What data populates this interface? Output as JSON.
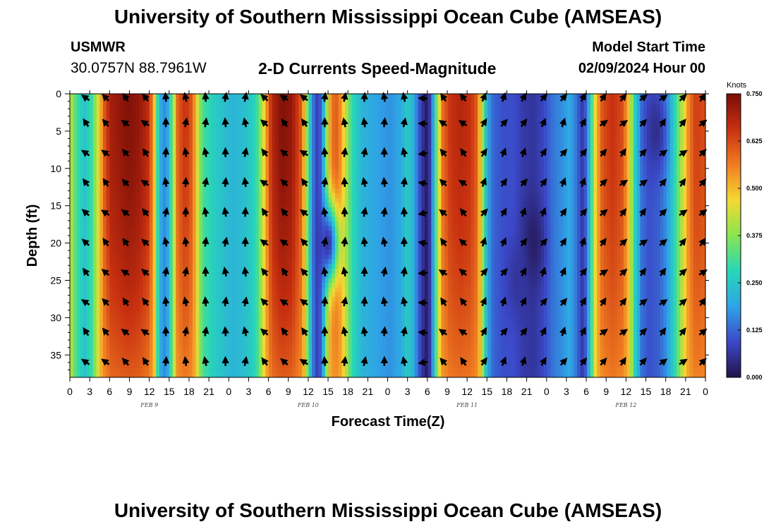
{
  "header": {
    "title": "University of Southern Mississippi Ocean Cube (AMSEAS)",
    "station": "USMWR",
    "coords": "30.0757N  88.7961W",
    "plot_title": "2-D Currents Speed-Magnitude",
    "model_start_label": "Model Start Time",
    "model_start_value": "02/09/2024 Hour 00"
  },
  "footer": {
    "title": "University of Southern Mississippi Ocean Cube (AMSEAS)"
  },
  "chart_data": {
    "type": "heatmap",
    "title": "2-D Currents Speed-Magnitude",
    "xlabel": "Forecast Time(Z)",
    "ylabel": "Depth (ft)",
    "x_range_hours": [
      0,
      96
    ],
    "y_range_ft": [
      0,
      38
    ],
    "y_inverted": true,
    "x_ticks": [
      "0",
      "3",
      "6",
      "9",
      "12",
      "15",
      "18",
      "21",
      "0",
      "3",
      "6",
      "9",
      "12",
      "15",
      "18",
      "21",
      "0",
      "3",
      "6",
      "9",
      "12",
      "15",
      "18",
      "21",
      "0",
      "3",
      "6",
      "9",
      "12",
      "15",
      "18",
      "21",
      "0"
    ],
    "y_ticks": [
      0,
      5,
      10,
      15,
      20,
      25,
      30,
      35
    ],
    "date_labels": [
      {
        "label": "FEB 9",
        "hour": 12
      },
      {
        "label": "FEB 10",
        "hour": 36
      },
      {
        "label": "FEB 11",
        "hour": 60
      },
      {
        "label": "FEB 12",
        "hour": 84
      }
    ],
    "colorbar": {
      "unit": "Knots",
      "min": 0.0,
      "max": 0.75,
      "ticks": [
        "0.000",
        "0.125",
        "0.250",
        "0.375",
        "0.500",
        "0.625",
        "0.750"
      ],
      "colors": [
        "#24124a",
        "#3b48c8",
        "#2fa4e6",
        "#27d6b8",
        "#88e650",
        "#f5d833",
        "#f07d22",
        "#c83010",
        "#7a0d08"
      ]
    },
    "speed_by_hour": [
      {
        "hour": 0,
        "speed": 0.44
      },
      {
        "hour": 0.5,
        "speed": 0.36
      },
      {
        "hour": 1.2,
        "speed": 0.3
      },
      {
        "hour": 2.2,
        "speed": 0.24
      },
      {
        "hour": 3.3,
        "speed": 0.3
      },
      {
        "hour": 4.3,
        "speed": 0.45
      },
      {
        "hour": 5.3,
        "speed": 0.62
      },
      {
        "hour": 6.2,
        "speed": 0.7
      },
      {
        "hour": 7.5,
        "speed": 0.72
      },
      {
        "hour": 9,
        "speed": 0.74
      },
      {
        "hour": 10.5,
        "speed": 0.72
      },
      {
        "hour": 12,
        "speed": 0.66
      },
      {
        "hour": 12.8,
        "speed": 0.48
      },
      {
        "hour": 13.3,
        "speed": 0.28
      },
      {
        "hour": 14,
        "speed": 0.15
      },
      {
        "hour": 14.8,
        "speed": 0.2
      },
      {
        "hour": 15.5,
        "speed": 0.35
      },
      {
        "hour": 16.3,
        "speed": 0.6
      },
      {
        "hour": 17.5,
        "speed": 0.66
      },
      {
        "hour": 18.5,
        "speed": 0.6
      },
      {
        "hour": 19.3,
        "speed": 0.44
      },
      {
        "hour": 20,
        "speed": 0.32
      },
      {
        "hour": 21.5,
        "speed": 0.27
      },
      {
        "hour": 23,
        "speed": 0.24
      },
      {
        "hour": 24.5,
        "speed": 0.22
      },
      {
        "hour": 26,
        "speed": 0.23
      },
      {
        "hour": 27.5,
        "speed": 0.26
      },
      {
        "hour": 28.5,
        "speed": 0.32
      },
      {
        "hour": 29.5,
        "speed": 0.5
      },
      {
        "hour": 30.5,
        "speed": 0.68
      },
      {
        "hour": 32,
        "speed": 0.74
      },
      {
        "hour": 33.5,
        "speed": 0.72
      },
      {
        "hour": 35,
        "speed": 0.6
      },
      {
        "hour": 35.8,
        "speed": 0.38
      },
      {
        "hour": 36.5,
        "speed": 0.18
      },
      {
        "hour": 37.2,
        "speed": 0.08
      },
      {
        "hour": 38,
        "speed": 0.12
      },
      {
        "hour": 38.8,
        "speed": 0.38
      },
      {
        "hour": 39.5,
        "speed": 0.58
      },
      {
        "hour": 40.5,
        "speed": 0.6
      },
      {
        "hour": 41.5,
        "speed": 0.45
      },
      {
        "hour": 42.5,
        "speed": 0.3
      },
      {
        "hour": 44,
        "speed": 0.22
      },
      {
        "hour": 45.5,
        "speed": 0.2
      },
      {
        "hour": 47,
        "speed": 0.18
      },
      {
        "hour": 48.5,
        "speed": 0.17
      },
      {
        "hour": 50,
        "speed": 0.2
      },
      {
        "hour": 51,
        "speed": 0.26
      },
      {
        "hour": 52,
        "speed": 0.2
      },
      {
        "hour": 53,
        "speed": 0.08
      },
      {
        "hour": 53.8,
        "speed": 0.02
      },
      {
        "hour": 54.5,
        "speed": 0.08
      },
      {
        "hour": 55.3,
        "speed": 0.32
      },
      {
        "hour": 56.3,
        "speed": 0.58
      },
      {
        "hour": 57.5,
        "speed": 0.66
      },
      {
        "hour": 59,
        "speed": 0.68
      },
      {
        "hour": 60.5,
        "speed": 0.66
      },
      {
        "hour": 61.5,
        "speed": 0.6
      },
      {
        "hour": 62.3,
        "speed": 0.4
      },
      {
        "hour": 63,
        "speed": 0.2
      },
      {
        "hour": 64,
        "speed": 0.12
      },
      {
        "hour": 65.5,
        "speed": 0.1
      },
      {
        "hour": 67,
        "speed": 0.1
      },
      {
        "hour": 68.5,
        "speed": 0.07
      },
      {
        "hour": 70,
        "speed": 0.06
      },
      {
        "hour": 71.5,
        "speed": 0.09
      },
      {
        "hour": 73,
        "speed": 0.14
      },
      {
        "hour": 74.5,
        "speed": 0.17
      },
      {
        "hour": 75.5,
        "speed": 0.2
      },
      {
        "hour": 76.5,
        "speed": 0.14
      },
      {
        "hour": 77.3,
        "speed": 0.07
      },
      {
        "hour": 78,
        "speed": 0.12
      },
      {
        "hour": 78.8,
        "speed": 0.3
      },
      {
        "hour": 79.5,
        "speed": 0.5
      },
      {
        "hour": 80.5,
        "speed": 0.62
      },
      {
        "hour": 82,
        "speed": 0.66
      },
      {
        "hour": 83.5,
        "speed": 0.62
      },
      {
        "hour": 84.5,
        "speed": 0.48
      },
      {
        "hour": 85.3,
        "speed": 0.28
      },
      {
        "hour": 86.3,
        "speed": 0.14
      },
      {
        "hour": 87.5,
        "speed": 0.1
      },
      {
        "hour": 89,
        "speed": 0.12
      },
      {
        "hour": 90.3,
        "speed": 0.18
      },
      {
        "hour": 91.5,
        "speed": 0.3
      },
      {
        "hour": 92.5,
        "speed": 0.42
      },
      {
        "hour": 93.5,
        "speed": 0.56
      },
      {
        "hour": 94.5,
        "speed": 0.64
      },
      {
        "hour": 96,
        "speed": 0.62
      }
    ],
    "low_speed_eddies": [
      {
        "hour": 70,
        "depth_ft": 20,
        "speed": 0.02
      },
      {
        "hour": 39,
        "depth_ft": 20,
        "speed": 0.06
      },
      {
        "hour": 88.5,
        "depth_ft": 5,
        "speed": 0.05
      },
      {
        "hour": 67.5,
        "depth_ft": 25,
        "speed": 0.06
      }
    ],
    "vector_grid": {
      "depths_ft": [
        0,
        4,
        8,
        12,
        16,
        20,
        24,
        28,
        32,
        36
      ],
      "hours_step": 3,
      "hours_start": 2.5,
      "dominant_direction_deg_by_regime": [
        {
          "from_hour": 0,
          "to_hour": 14,
          "deg": 315
        },
        {
          "from_hour": 14,
          "to_hour": 28,
          "deg": 0
        },
        {
          "from_hour": 28,
          "to_hour": 38,
          "deg": 315
        },
        {
          "from_hour": 38,
          "to_hour": 52,
          "deg": 0
        },
        {
          "from_hour": 52,
          "to_hour": 55,
          "deg": 270
        },
        {
          "from_hour": 55,
          "to_hour": 62,
          "deg": 315
        },
        {
          "from_hour": 62,
          "to_hour": 80,
          "deg": 30
        },
        {
          "from_hour": 80,
          "to_hour": 96,
          "deg": 45
        }
      ]
    }
  }
}
